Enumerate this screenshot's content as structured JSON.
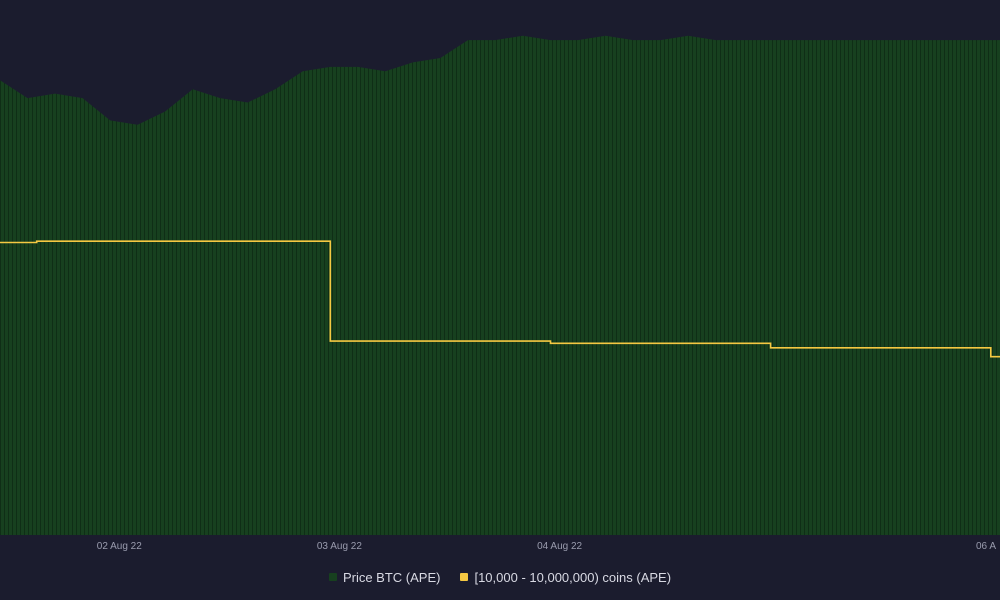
{
  "chart_data": {
    "type": "area",
    "x_tick_labels": [
      "02 Aug 22",
      "03 Aug 22",
      "04 Aug 22",
      "06 A"
    ],
    "x_range": [
      "2022-08-01T11:00",
      "2022-08-06T00:00"
    ],
    "series": [
      {
        "name": "Price BTC (APE)",
        "kind": "area-bars",
        "color": "#17401f",
        "x": [
          "2022-08-01T11:00",
          "2022-08-01T14:00",
          "2022-08-01T17:00",
          "2022-08-01T20:00",
          "2022-08-01T23:00",
          "2022-08-02T02:00",
          "2022-08-02T05:00",
          "2022-08-02T08:00",
          "2022-08-02T11:00",
          "2022-08-02T14:00",
          "2022-08-02T17:00",
          "2022-08-02T20:00",
          "2022-08-02T23:00",
          "2022-08-03T02:00",
          "2022-08-03T05:00",
          "2022-08-03T08:00",
          "2022-08-03T11:00",
          "2022-08-03T14:00",
          "2022-08-03T17:00",
          "2022-08-03T20:00",
          "2022-08-03T23:00",
          "2022-08-04T02:00",
          "2022-08-04T05:00",
          "2022-08-04T08:00",
          "2022-08-04T11:00",
          "2022-08-04T14:00",
          "2022-08-04T17:00",
          "2022-08-04T20:00",
          "2022-08-04T23:00",
          "2022-08-05T02:00",
          "2022-08-05T05:00",
          "2022-08-05T08:00",
          "2022-08-05T11:00",
          "2022-08-05T14:00",
          "2022-08-05T17:00",
          "2022-08-05T20:00",
          "2022-08-05T23:00"
        ],
        "values": [
          94,
          90,
          91,
          90,
          85,
          84,
          87,
          92,
          90,
          89,
          92,
          96,
          97,
          97,
          96,
          98,
          99,
          103,
          103,
          104,
          103,
          103,
          104,
          103,
          103,
          104,
          103,
          103,
          103,
          103,
          103,
          103,
          103,
          103,
          103,
          103,
          103
        ]
      },
      {
        "name": "[10,000 - 10,000,000) coins (APE)",
        "kind": "step-line",
        "color": "#f5c842",
        "x": [
          "2022-08-01T11:00",
          "2022-08-01T15:00",
          "2022-08-02T11:00",
          "2022-08-02T23:00",
          "2022-08-03T11:00",
          "2022-08-03T23:00",
          "2022-08-04T11:00",
          "2022-08-04T23:00",
          "2022-08-05T11:00",
          "2022-08-05T23:00",
          "2022-08-06T00:00"
        ],
        "values": [
          57.6,
          57.9,
          57.9,
          35.5,
          35.5,
          35.0,
          35.0,
          34.0,
          34.0,
          32.0,
          32.0
        ]
      }
    ],
    "ylim": [
      -8,
      112
    ],
    "grid": false,
    "legend_position": "bottom"
  },
  "legend": [
    {
      "label": "Price BTC (APE)",
      "color": "#17401f"
    },
    {
      "label": "[10,000 - 10,000,000) coins (APE)",
      "color": "#f5c842"
    }
  ]
}
